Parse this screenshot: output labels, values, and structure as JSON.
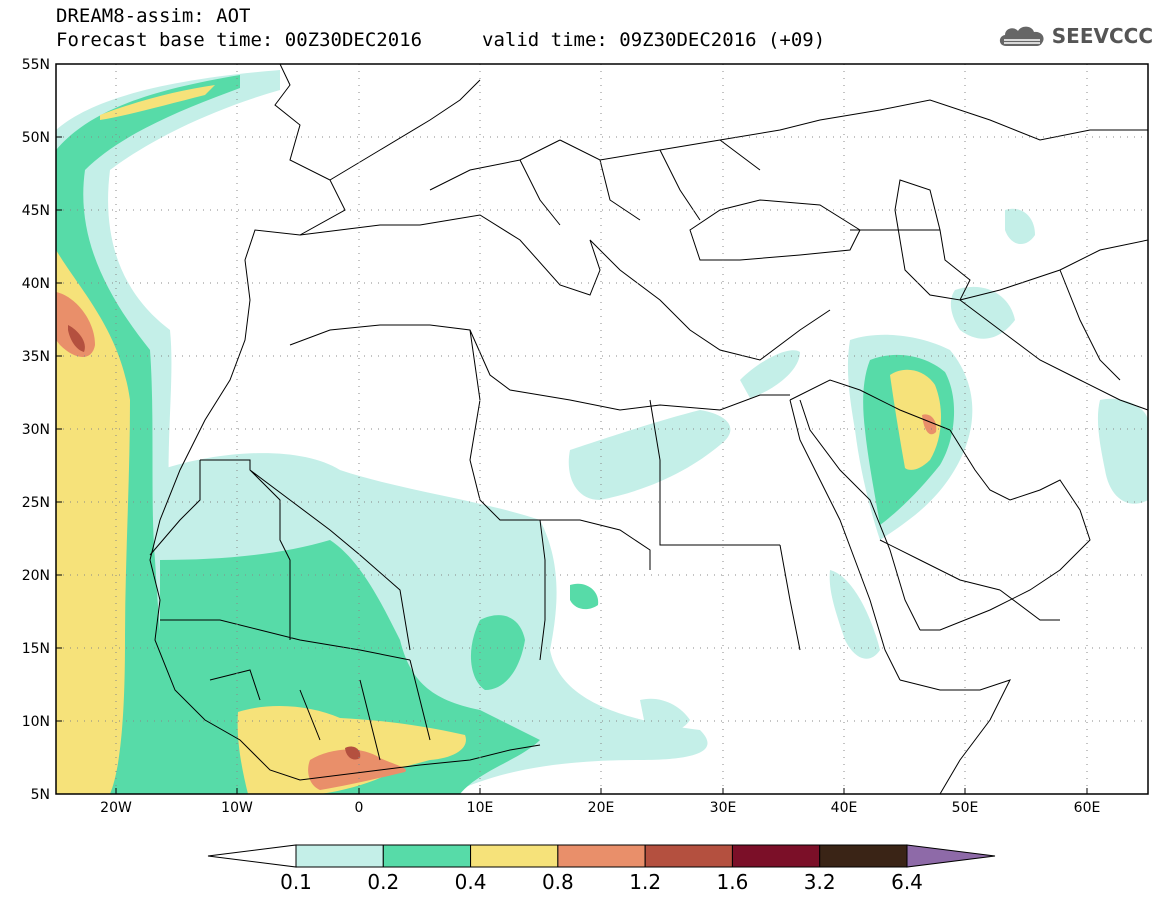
{
  "header": {
    "title": "DREAM8-assim: AOT",
    "base_time": "Forecast base time: 00Z30DEC2016",
    "valid_time": "valid time: 09Z30DEC2016 (+09)"
  },
  "logo": {
    "text": "SEEVCCC",
    "icon": "cloud-icon"
  },
  "map": {
    "lat_ticks": [
      "55N",
      "50N",
      "45N",
      "40N",
      "35N",
      "30N",
      "25N",
      "20N",
      "15N",
      "10N",
      "5N"
    ],
    "lon_ticks": [
      "20W",
      "10W",
      "0",
      "10E",
      "20E",
      "30E",
      "40E",
      "50E",
      "60E"
    ],
    "lat_range": [
      5,
      55
    ],
    "lon_range": [
      -25,
      65
    ],
    "grid": true
  },
  "colorbar": {
    "levels": [
      "0.1",
      "0.2",
      "0.4",
      "0.8",
      "1.2",
      "1.6",
      "3.2",
      "6.4"
    ],
    "colors": [
      "#ffffff",
      "#c4efe8",
      "#57dba8",
      "#f6e27a",
      "#e98f6a",
      "#b4503f",
      "#7b0f28",
      "#3a2416",
      "#8e6aa8"
    ],
    "extend": "both"
  }
}
